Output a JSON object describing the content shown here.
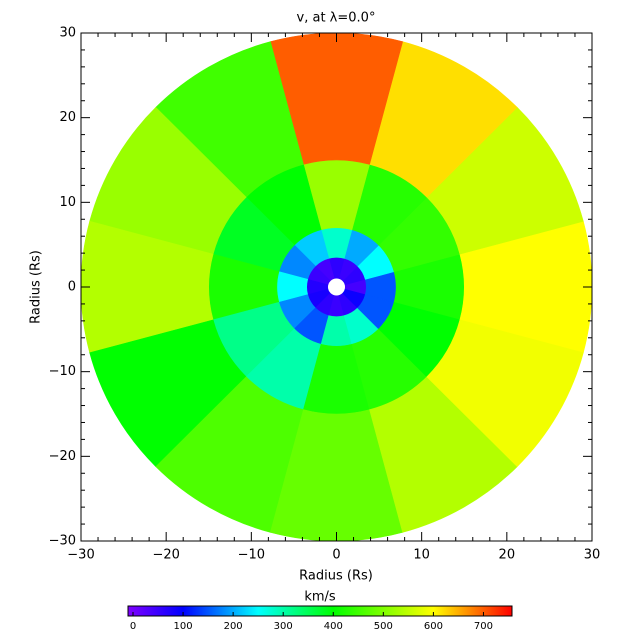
{
  "chart_data": {
    "type": "polar-heatmap",
    "title": "v, at λ=0.0°",
    "xlabel": "Radius (Rs)",
    "ylabel": "Radius (Rs)",
    "xlim": [
      -30,
      30
    ],
    "ylim": [
      -30,
      30
    ],
    "xticks": [
      {
        "value": -30,
        "label": "−30"
      },
      {
        "value": -20,
        "label": "−20"
      },
      {
        "value": -10,
        "label": "−10"
      },
      0,
      10,
      20,
      30
    ],
    "yticks": [
      {
        "value": -30,
        "label": "−30"
      },
      {
        "value": -20,
        "label": "−20"
      },
      {
        "value": -10,
        "label": "−10"
      },
      0,
      10,
      20,
      30
    ],
    "theta": [
      0,
      30,
      60,
      90,
      120,
      150,
      180,
      210,
      240,
      270,
      300,
      330
    ],
    "r_edges": [
      1,
      3.5,
      7,
      15,
      30
    ],
    "values": [
      [
        40,
        60,
        50,
        60,
        40,
        50,
        70,
        80,
        60,
        50,
        60,
        90
      ],
      [
        150,
        250,
        200,
        280,
        220,
        180,
        250,
        180,
        150,
        300,
        280,
        150
      ],
      [
        420,
        440,
        430,
        520,
        400,
        380,
        420,
        320,
        300,
        420,
        430,
        400
      ],
      [
        600,
        560,
        620,
        700,
        450,
        520,
        540,
        400,
        460,
        480,
        540,
        590
      ]
    ],
    "colorbar": {
      "label": "km/s",
      "lim": [
        -10,
        757
      ],
      "ticks": [
        0,
        100,
        200,
        300,
        400,
        500,
        600,
        700
      ]
    },
    "colormap": [
      {
        "value": -10,
        "color": "#7f00ff"
      },
      {
        "value": 100,
        "color": "#0000ff"
      },
      {
        "value": 250,
        "color": "#00ffff"
      },
      {
        "value": 400,
        "color": "#00ff00"
      },
      {
        "value": 600,
        "color": "#ffff00"
      },
      {
        "value": 757,
        "color": "#ff0000"
      }
    ]
  }
}
